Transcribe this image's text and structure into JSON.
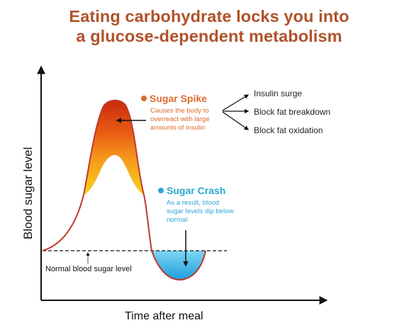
{
  "title": {
    "line1": "Eating carbohydrate locks you into",
    "line2": "a glucose-dependent metabolism"
  },
  "axes": {
    "xlabel": "Time after meal",
    "ylabel": "Blood sugar level"
  },
  "spike": {
    "title": "Sugar Spike",
    "desc": [
      "Causes the body to",
      "overreact with large",
      "amounts of insulin"
    ],
    "effects": [
      "Insulin surge",
      "Block fat breakdown",
      "Block fat oxidation"
    ]
  },
  "crash": {
    "title": "Sugar Crash",
    "desc": [
      "As a result, blood",
      "sugar levels dip below",
      "normal"
    ]
  },
  "baseline": {
    "label": "Normal blood sugar level"
  },
  "colors": {
    "title": "#b0522a",
    "spike_accent": "#e06a2a",
    "crash_accent": "#2aa6d6",
    "curve": "#c0392b",
    "spike_top": "#d83a10",
    "spike_mid": "#f08a1a",
    "spike_low": "#f5cf1e",
    "crash_fill": "#26b0e8"
  }
}
